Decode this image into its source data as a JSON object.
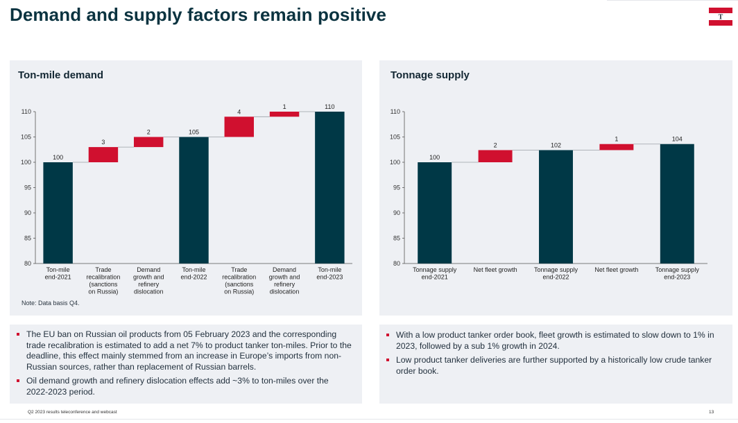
{
  "page": {
    "title": "Demand and supply factors remain positive",
    "footer_left": "Q2 2023 results teleconference and webcast",
    "page_number": "13",
    "logo_letter": "T",
    "colors": {
      "total": "#003846",
      "increase": "#d0102f",
      "panel": "#eef0f4",
      "title": "#0b3340"
    }
  },
  "left_panel": {
    "title": "Ton-mile demand",
    "note": "Note: Data basis Q4.",
    "bullets": [
      "The EU ban on Russian oil products from 05 February 2023 and the corresponding trade recalibration is estimated to add a net 7% to product tanker ton-miles. Prior to the deadline, this effect mainly stemmed from an increase in Europe’s imports from non-Russian sources, rather than replacement of Russian barrels.",
      "Oil demand growth and refinery dislocation effects add ~3% to ton-miles over the 2022-2023 period."
    ]
  },
  "right_panel": {
    "title": "Tonnage supply",
    "bullets": [
      "With a low product tanker order book, fleet growth is estimated to slow down to 1% in 2023, followed by a sub 1% growth in 2024.",
      "Low product tanker deliveries are further supported by a historically low crude tanker order book."
    ]
  },
  "chart_data": [
    {
      "type": "bar",
      "subtype": "waterfall",
      "title": "Ton-mile demand",
      "ylim": [
        80,
        110
      ],
      "yticks": [
        80,
        85,
        90,
        95,
        100,
        105,
        110
      ],
      "categories": [
        [
          "Ton-mile",
          "end-2021"
        ],
        [
          "Trade",
          "recalibration",
          "(sanctions",
          "on Russia)"
        ],
        [
          "Demand",
          "growth and",
          "refinery",
          "dislocation"
        ],
        [
          "Ton-mile",
          "end-2022"
        ],
        [
          "Trade",
          "recalibration",
          "(sanctions",
          "on Russia)"
        ],
        [
          "Demand",
          "growth and",
          "refinery",
          "dislocation"
        ],
        [
          "Ton-mile",
          "end-2023"
        ]
      ],
      "bars": [
        {
          "kind": "total",
          "base": 80,
          "top": 100,
          "label": "100"
        },
        {
          "kind": "increase",
          "base": 100,
          "top": 103,
          "label": "3"
        },
        {
          "kind": "increase",
          "base": 103,
          "top": 105,
          "label": "2"
        },
        {
          "kind": "total",
          "base": 80,
          "top": 105,
          "label": "105"
        },
        {
          "kind": "increase",
          "base": 105,
          "top": 109,
          "label": "4"
        },
        {
          "kind": "increase",
          "base": 109,
          "top": 110,
          "label": "1"
        },
        {
          "kind": "total",
          "base": 80,
          "top": 110,
          "label": "110"
        }
      ],
      "grid": false,
      "legend": "none"
    },
    {
      "type": "bar",
      "subtype": "waterfall",
      "title": "Tonnage supply",
      "ylim": [
        80,
        110
      ],
      "yticks": [
        80,
        85,
        90,
        95,
        100,
        105,
        110
      ],
      "categories": [
        [
          "Tonnage supply",
          "end-2021"
        ],
        [
          "Net fleet growth"
        ],
        [
          "Tonnage supply",
          "end-2022"
        ],
        [
          "Net fleet growth"
        ],
        [
          "Tonnage supply",
          "end-2023"
        ]
      ],
      "bars": [
        {
          "kind": "total",
          "base": 80,
          "top": 100,
          "label": "100"
        },
        {
          "kind": "increase",
          "base": 100,
          "top": 102.4,
          "label": "2"
        },
        {
          "kind": "total",
          "base": 80,
          "top": 102.4,
          "label": "102"
        },
        {
          "kind": "increase",
          "base": 102.4,
          "top": 103.6,
          "label": "1"
        },
        {
          "kind": "total",
          "base": 80,
          "top": 103.6,
          "label": "104"
        }
      ],
      "grid": false,
      "legend": "none"
    }
  ]
}
